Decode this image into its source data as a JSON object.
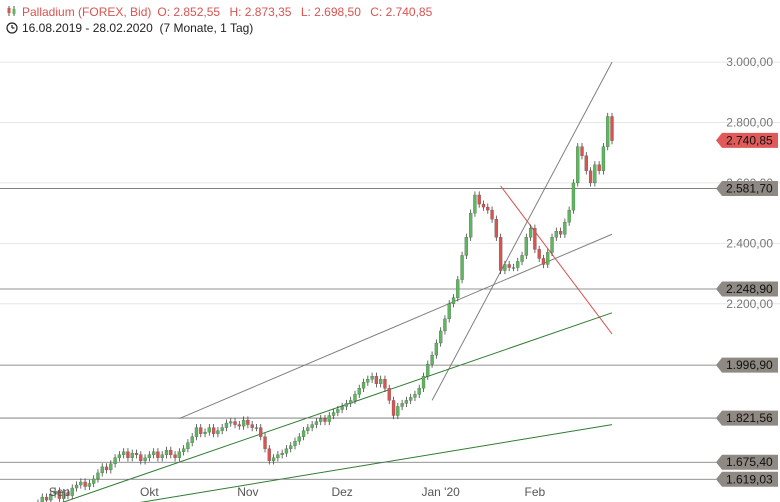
{
  "header": {
    "title": "Palladium (FOREX, Bid)",
    "open": "O: 2.852,55",
    "high": "H: 2.873,35",
    "low": "L: 2.698,50",
    "close": "C: 2.740,85",
    "range": "16.08.2019 - 28.02.2020",
    "period": "(7 Monate, 1 Tag)",
    "candle_icon": "candlestick-icon",
    "clock_icon": "clock-icon"
  },
  "chart_data": {
    "type": "candlestick",
    "title": "Palladium (FOREX, Bid)",
    "ylim": [
      1600,
      3040
    ],
    "yticks": [
      {
        "value": 2200,
        "label": "2.200,00"
      },
      {
        "value": 2400,
        "label": "2.400,00"
      },
      {
        "value": 2600,
        "label": "2.600,00"
      },
      {
        "value": 2800,
        "label": "2.800,00"
      },
      {
        "value": 3000,
        "label": "3.000,00"
      }
    ],
    "x_labels": [
      {
        "index": 12,
        "label": "Sep"
      },
      {
        "index": 33,
        "label": "Okt"
      },
      {
        "index": 56,
        "label": "Nov"
      },
      {
        "index": 78,
        "label": "Dez"
      },
      {
        "index": 101,
        "label": "Jan '20"
      },
      {
        "index": 123,
        "label": "Feb"
      }
    ],
    "n_candles": 142,
    "closes": [
      1470,
      1480,
      1490,
      1500,
      1510,
      1530,
      1520,
      1540,
      1560,
      1550,
      1570,
      1580,
      1555,
      1575,
      1565,
      1590,
      1600,
      1610,
      1595,
      1605,
      1620,
      1640,
      1660,
      1650,
      1670,
      1690,
      1700,
      1710,
      1690,
      1705,
      1700,
      1680,
      1690,
      1700,
      1710,
      1690,
      1700,
      1715,
      1700,
      1690,
      1710,
      1720,
      1740,
      1760,
      1790,
      1770,
      1775,
      1790,
      1770,
      1780,
      1790,
      1805,
      1810,
      1800,
      1795,
      1815,
      1800,
      1790,
      1790,
      1760,
      1720,
      1680,
      1690,
      1700,
      1705,
      1720,
      1730,
      1745,
      1760,
      1780,
      1790,
      1800,
      1810,
      1820,
      1810,
      1830,
      1840,
      1850,
      1860,
      1870,
      1880,
      1900,
      1920,
      1940,
      1950,
      1960,
      1935,
      1950,
      1920,
      1880,
      1830,
      1860,
      1870,
      1880,
      1890,
      1900,
      1920,
      1960,
      2000,
      2030,
      2070,
      2110,
      2150,
      2200,
      2220,
      2280,
      2360,
      2420,
      2500,
      2560,
      2530,
      2520,
      2510,
      2480,
      2420,
      2310,
      2330,
      2320,
      2320,
      2340,
      2360,
      2420,
      2450,
      2380,
      2350,
      2330,
      2370,
      2420,
      2440,
      2430,
      2470,
      2510,
      2600,
      2720,
      2690,
      2640,
      2600,
      2660,
      2640,
      2720,
      2820,
      2740
    ],
    "support_levels": [
      {
        "value": 2740.85,
        "label": "2.740,85",
        "type": "last"
      },
      {
        "value": 2581.7,
        "label": "2.581,70",
        "type": "resistance"
      },
      {
        "value": 2248.9,
        "label": "2.248,90",
        "type": "support"
      },
      {
        "value": 1996.9,
        "label": "1.996,90",
        "type": "support"
      },
      {
        "value": 1821.56,
        "label": "1.821,56",
        "type": "support"
      },
      {
        "value": 1675.4,
        "label": "1.675,40",
        "type": "support"
      },
      {
        "value": 1619.03,
        "label": "1.619,03",
        "type": "support"
      }
    ],
    "trendlines": [
      {
        "color": "#808080",
        "from": [
          99,
          1880
        ],
        "to": [
          141,
          3000
        ]
      },
      {
        "color": "#808080",
        "from": [
          40,
          1820
        ],
        "to": [
          141,
          2430
        ]
      },
      {
        "color": "#d9534f",
        "from": [
          115,
          2590
        ],
        "to": [
          141,
          2100
        ]
      },
      {
        "color": "#2e7d32",
        "from": [
          0,
          1480
        ],
        "to": [
          141,
          2170
        ]
      },
      {
        "color": "#2e7d32",
        "from": [
          0,
          1470
        ],
        "to": [
          141,
          1800
        ]
      }
    ],
    "colors": {
      "up": "#5cb85c",
      "down": "#d9534f",
      "wick": "#444444",
      "grid": "#e6e6e6",
      "support_tag": "#8f8983",
      "last_tag": "#e05a5a"
    }
  }
}
